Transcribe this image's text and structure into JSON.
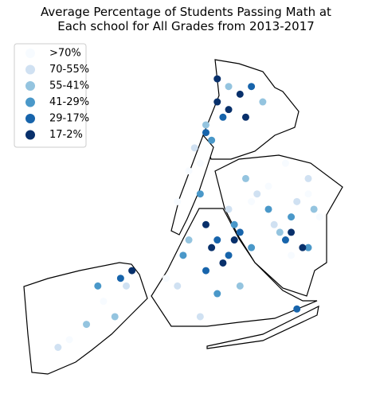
{
  "chart_data": {
    "type": "map",
    "title": "Average Percentage of Students Passing Math at\n Each school for All Grades from 2013-2017",
    "legend": "upper left",
    "series": [
      {
        "name": ">70%",
        "color": "#f7fbff",
        "lon": [
          -73.97,
          -73.99,
          -73.83,
          -73.76,
          -73.74,
          -73.8,
          -74.18,
          -74.12,
          -73.86,
          -73.95,
          -74.01,
          -73.79
        ],
        "lat": [
          40.77,
          40.73,
          40.75,
          40.74,
          40.71,
          40.78,
          40.55,
          40.6,
          40.73,
          40.78,
          40.63,
          40.66
        ]
      },
      {
        "name": "70-55%",
        "color": "#d0e1f2",
        "lon": [
          -73.96,
          -73.85,
          -73.78,
          -73.9,
          -74.2,
          -74.08,
          -73.99,
          -73.82,
          -73.76,
          -73.95
        ],
        "lat": [
          40.8,
          40.74,
          40.73,
          40.72,
          40.54,
          40.62,
          40.62,
          40.7,
          40.76,
          40.58
        ]
      },
      {
        "name": "55-41%",
        "color": "#94c4df",
        "lon": [
          -73.94,
          -73.87,
          -73.81,
          -74.15,
          -74.1,
          -73.97,
          -73.9,
          -73.75,
          -73.84,
          -73.88
        ],
        "lat": [
          40.83,
          40.76,
          40.69,
          40.57,
          40.58,
          40.68,
          40.88,
          40.72,
          40.86,
          40.62
        ]
      },
      {
        "name": "41-29%",
        "color": "#4a98c9",
        "lon": [
          -73.93,
          -73.89,
          -73.86,
          -73.79,
          -74.13,
          -73.98,
          -73.92,
          -73.83,
          -73.95,
          -73.76
        ],
        "lat": [
          40.81,
          40.7,
          40.67,
          40.71,
          40.62,
          40.66,
          40.61,
          40.72,
          40.74,
          40.67
        ]
      },
      {
        "name": "29-17%",
        "color": "#1764ab",
        "lon": [
          -73.91,
          -73.94,
          -73.92,
          -73.9,
          -73.88,
          -73.8,
          -74.09,
          -73.94,
          -73.86,
          -73.78
        ],
        "lat": [
          40.84,
          40.82,
          40.68,
          40.66,
          40.69,
          40.68,
          40.63,
          40.64,
          40.88,
          40.59
        ]
      },
      {
        "name": "17-2%",
        "color": "#08306b",
        "lon": [
          -73.92,
          -73.9,
          -73.88,
          -73.93,
          -73.91,
          -73.89,
          -73.77,
          -73.79,
          -73.87,
          -73.92,
          -73.94,
          -74.07
        ],
        "lat": [
          40.86,
          40.85,
          40.87,
          40.67,
          40.65,
          40.68,
          40.67,
          40.69,
          40.84,
          40.89,
          40.7,
          40.64
        ]
      }
    ]
  }
}
